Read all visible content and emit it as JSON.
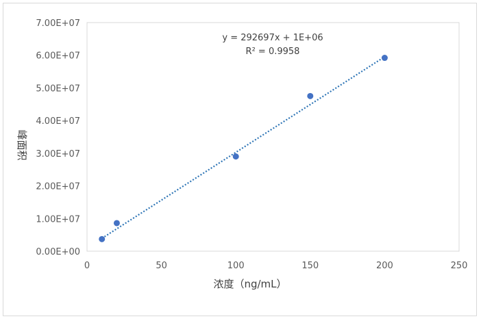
{
  "chart_data": {
    "type": "scatter",
    "title": "",
    "xlabel": "浓度（ng/mL）",
    "ylabel": "峰面积",
    "xlim": [
      0,
      250
    ],
    "ylim": [
      0,
      70000000
    ],
    "x_ticks": [
      0,
      50,
      100,
      150,
      200,
      250
    ],
    "x_tick_labels": [
      "0",
      "50",
      "100",
      "150",
      "200",
      "250"
    ],
    "y_ticks": [
      0,
      10000000,
      20000000,
      30000000,
      40000000,
      50000000,
      60000000,
      70000000
    ],
    "y_tick_labels": [
      "0.00E+00",
      "1.00E+07",
      "2.00E+07",
      "3.00E+07",
      "4.00E+07",
      "5.00E+07",
      "6.00E+07",
      "7.00E+07"
    ],
    "grid": false,
    "legend": "none",
    "series": [
      {
        "x": [
          10,
          20,
          100,
          150,
          200
        ],
        "y": [
          3700000,
          8600000,
          29000000,
          47500000,
          59200000
        ],
        "color": "#4472c4"
      }
    ],
    "trendline": {
      "type": "linear",
      "slope": 292697,
      "intercept": 1000000,
      "x_range": [
        10,
        200
      ],
      "color": "#2e75b6",
      "style": "dotted"
    },
    "annotations": {
      "equation": "y = 292697x + 1E+06",
      "r_squared": "R² = 0.9958"
    }
  }
}
